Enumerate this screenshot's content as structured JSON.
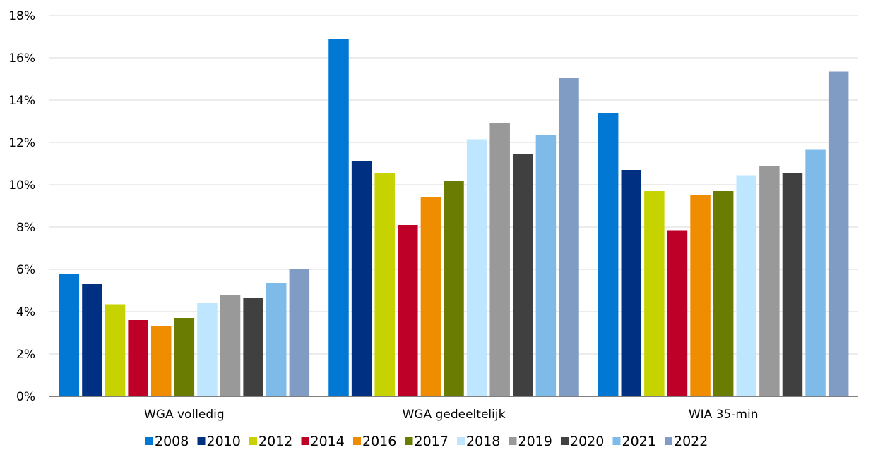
{
  "chart_data": {
    "type": "bar",
    "categories": [
      "WGA volledig",
      "WGA gedeeltelijk",
      "WIA 35-min"
    ],
    "y_tick_labels": [
      "0%",
      "2%",
      "4%",
      "6%",
      "8%",
      "10%",
      "12%",
      "14%",
      "16%",
      "18%"
    ],
    "ylim": [
      0,
      18
    ],
    "y_unit": "%",
    "grid": true,
    "legend_position": "bottom",
    "series": [
      {
        "name": "2008",
        "color": "#0078d4",
        "values": [
          5.8,
          16.9,
          13.4
        ]
      },
      {
        "name": "2010",
        "color": "#003082",
        "values": [
          5.3,
          11.1,
          10.7
        ]
      },
      {
        "name": "2012",
        "color": "#c6d300",
        "values": [
          4.35,
          10.55,
          9.7
        ]
      },
      {
        "name": "2014",
        "color": "#be0029",
        "values": [
          3.6,
          8.1,
          7.85
        ]
      },
      {
        "name": "2016",
        "color": "#f08c00",
        "values": [
          3.3,
          9.4,
          9.5
        ]
      },
      {
        "name": "2017",
        "color": "#6b7c02",
        "values": [
          3.7,
          10.2,
          9.7
        ]
      },
      {
        "name": "2018",
        "color": "#bfe6ff",
        "values": [
          4.4,
          12.15,
          10.45
        ]
      },
      {
        "name": "2019",
        "color": "#999999",
        "values": [
          4.8,
          12.9,
          10.9
        ]
      },
      {
        "name": "2020",
        "color": "#404040",
        "values": [
          4.65,
          11.45,
          10.55
        ]
      },
      {
        "name": "2021",
        "color": "#7fbbe8",
        "values": [
          5.35,
          12.35,
          11.65
        ]
      },
      {
        "name": "2022",
        "color": "#809bc4",
        "values": [
          6.0,
          15.05,
          15.35
        ]
      }
    ]
  }
}
